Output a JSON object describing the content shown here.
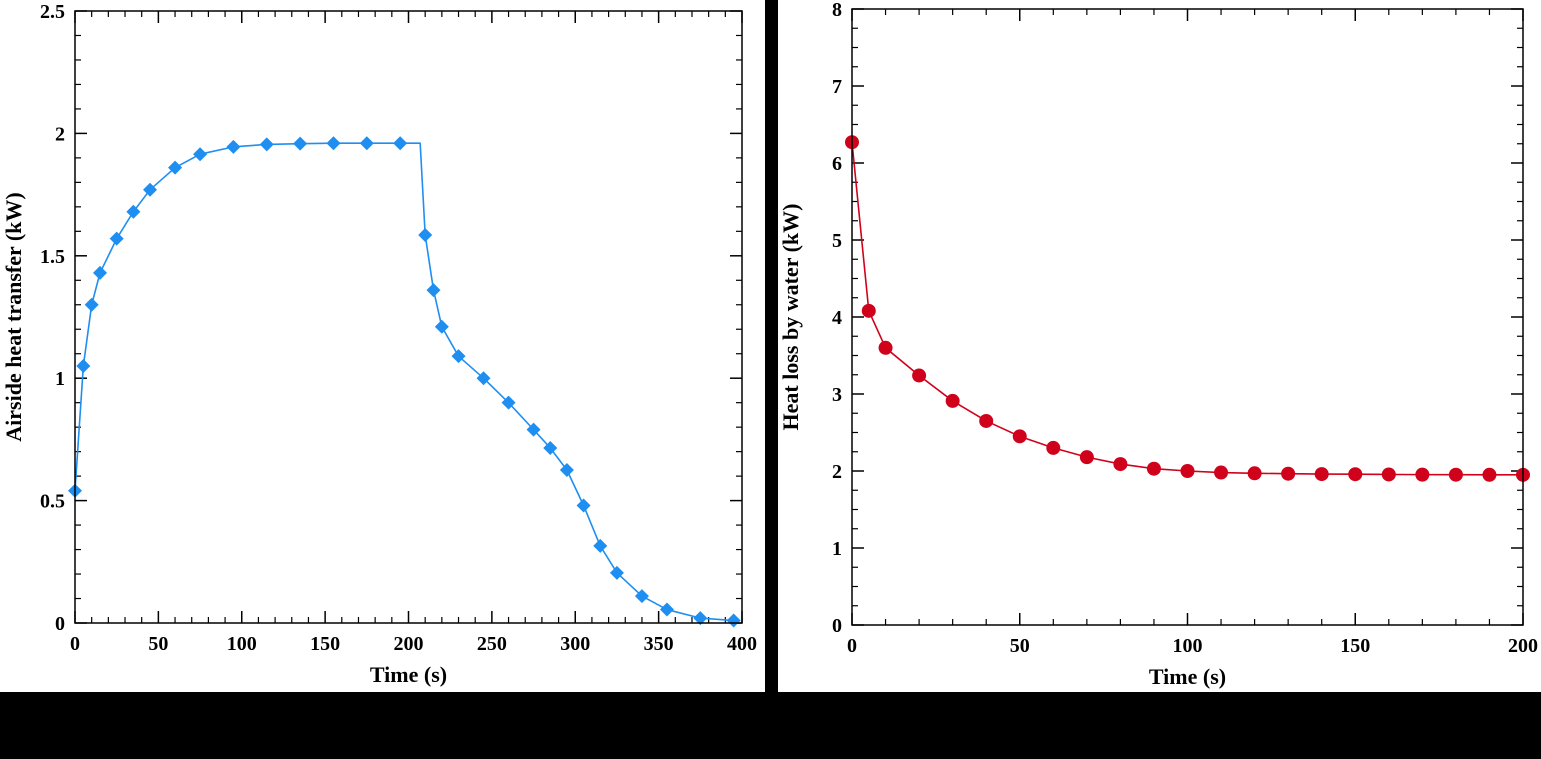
{
  "chart_data": [
    {
      "type": "line",
      "title": "",
      "xlabel": "Time (s)",
      "ylabel": "Airside heat transfer (kW)",
      "xlim": [
        0,
        400
      ],
      "ylim": [
        0,
        2.5
      ],
      "xticks": [
        0,
        50,
        100,
        150,
        200,
        250,
        300,
        350,
        400
      ],
      "xtick_labels": [
        "0",
        "50",
        "100",
        "150",
        "200",
        "250",
        "300",
        "350",
        "400"
      ],
      "yticks": [
        0,
        0.5,
        1,
        1.5,
        2,
        2.5
      ],
      "ytick_labels": [
        "0",
        "0.5",
        "1",
        "1.5",
        "2",
        "2.5"
      ],
      "grid": false,
      "marker": "diamond",
      "color": "#1f8ef1",
      "line_x": [
        0,
        5,
        10,
        15,
        25,
        35,
        45,
        60,
        75,
        95,
        115,
        135,
        155,
        175,
        195,
        207,
        210,
        215,
        220,
        230,
        245,
        260,
        275,
        285,
        295,
        305,
        315,
        325,
        340,
        355,
        375,
        395
      ],
      "line_y": [
        0.54,
        1.05,
        1.3,
        1.43,
        1.57,
        1.68,
        1.77,
        1.86,
        1.915,
        1.945,
        1.955,
        1.958,
        1.96,
        1.96,
        1.96,
        1.96,
        1.585,
        1.36,
        1.21,
        1.09,
        1.0,
        0.9,
        0.79,
        0.715,
        0.625,
        0.48,
        0.315,
        0.205,
        0.11,
        0.055,
        0.02,
        0.01
      ],
      "marker_x": [
        0,
        5,
        10,
        15,
        25,
        35,
        45,
        60,
        75,
        95,
        115,
        135,
        155,
        175,
        195,
        210,
        215,
        220,
        230,
        245,
        260,
        275,
        285,
        295,
        305,
        315,
        325,
        340,
        355,
        375,
        395
      ],
      "marker_y": [
        0.54,
        1.05,
        1.3,
        1.43,
        1.57,
        1.68,
        1.77,
        1.86,
        1.915,
        1.945,
        1.955,
        1.958,
        1.96,
        1.96,
        1.96,
        1.585,
        1.36,
        1.21,
        1.09,
        1.0,
        0.9,
        0.79,
        0.715,
        0.625,
        0.48,
        0.315,
        0.205,
        0.11,
        0.055,
        0.02,
        0.01
      ]
    },
    {
      "type": "line",
      "title": "",
      "xlabel": "Time (s)",
      "ylabel": "Heat loss by water (kW)",
      "xlim": [
        0,
        200
      ],
      "ylim": [
        0,
        8
      ],
      "xticks": [
        0,
        50,
        100,
        150,
        200
      ],
      "xtick_labels": [
        "0",
        "50",
        "100",
        "150",
        "200"
      ],
      "yticks": [
        0,
        1,
        2,
        3,
        4,
        5,
        6,
        7,
        8
      ],
      "ytick_labels": [
        "0",
        "1",
        "2",
        "3",
        "4",
        "5",
        "6",
        "7",
        "8"
      ],
      "grid": false,
      "marker": "circle",
      "color": "#d0021b",
      "line_x": [
        0,
        5,
        10,
        20,
        30,
        40,
        50,
        60,
        70,
        80,
        90,
        100,
        110,
        120,
        130,
        140,
        150,
        160,
        170,
        180,
        190,
        200
      ],
      "line_y": [
        6.27,
        4.08,
        3.6,
        3.24,
        2.91,
        2.65,
        2.45,
        2.3,
        2.18,
        2.09,
        2.03,
        2.0,
        1.98,
        1.97,
        1.965,
        1.96,
        1.958,
        1.955,
        1.953,
        1.952,
        1.951,
        1.95
      ],
      "marker_x": [
        0,
        5,
        10,
        20,
        30,
        40,
        50,
        60,
        70,
        80,
        90,
        100,
        110,
        120,
        130,
        140,
        150,
        160,
        170,
        180,
        190,
        200
      ],
      "marker_y": [
        6.27,
        4.08,
        3.6,
        3.24,
        2.91,
        2.65,
        2.45,
        2.3,
        2.18,
        2.09,
        2.03,
        2.0,
        1.98,
        1.97,
        1.965,
        1.96,
        1.958,
        1.955,
        1.953,
        1.952,
        1.951,
        1.95
      ]
    }
  ]
}
